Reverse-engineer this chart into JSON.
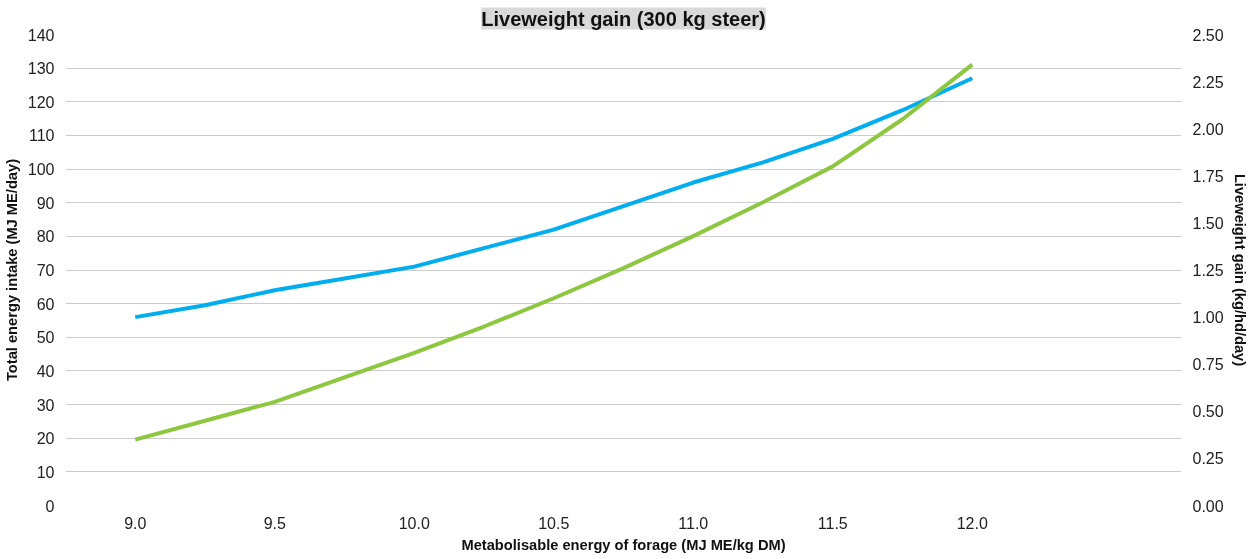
{
  "chart_data": {
    "type": "line",
    "title": "Liveweight gain (300 kg steer)",
    "xlabel": "Metabolisable energy of forage (MJ ME/kg DM)",
    "ylabel": "Total energy intake (MJ ME/day)",
    "y2label": "Liveweight gain (kg/hd/day)",
    "x": [
      9.0,
      9.25,
      9.5,
      9.75,
      10.0,
      10.25,
      10.5,
      10.75,
      11.0,
      11.25,
      11.5,
      11.75,
      12.0
    ],
    "series": [
      {
        "color": "#00aeef",
        "values": [
          56,
          59.5,
          64,
          67.5,
          71,
          76.5,
          82,
          89,
          96,
          102,
          109,
          117.5,
          127
        ]
      },
      {
        "color": "#8dc63f",
        "axis": "y2",
        "values": [
          0.35,
          0.45,
          0.55,
          0.68,
          0.81,
          0.95,
          1.1,
          1.26,
          1.43,
          1.61,
          1.8,
          2.05,
          2.34
        ]
      }
    ],
    "xlim": [
      8.75,
      12.75
    ],
    "xticks": [
      {
        "value": 9,
        "label": "9.0"
      },
      9.5,
      {
        "value": 10,
        "label": "10.0"
      },
      10.5,
      {
        "value": 11,
        "label": "11.0"
      },
      11.5,
      {
        "value": 12,
        "label": "12.0"
      }
    ],
    "ylim": [
      0,
      140
    ],
    "yticks": [
      0,
      10,
      20,
      30,
      40,
      50,
      60,
      70,
      80,
      90,
      100,
      110,
      120,
      130,
      140
    ],
    "y2lim": [
      0,
      2.5
    ],
    "y2ticks": [
      {
        "value": 0,
        "label": "0.00"
      },
      0.25,
      {
        "value": 0.5,
        "label": "0.50"
      },
      0.75,
      {
        "value": 1,
        "label": "1.00"
      },
      1.25,
      {
        "value": 1.5,
        "label": "1.50"
      },
      1.75,
      {
        "value": 2,
        "label": "2.00"
      },
      2.25,
      {
        "value": 2.5,
        "label": "2.50"
      }
    ],
    "grid": "y",
    "line_style": "solid"
  }
}
